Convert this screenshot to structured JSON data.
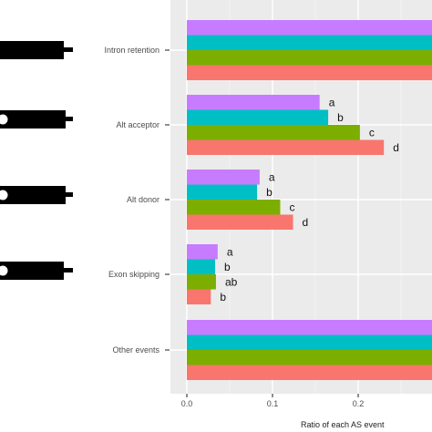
{
  "chart_data": {
    "type": "bar",
    "orientation": "horizontal",
    "categories": [
      "Intron retention",
      "Alt acceptor",
      "Alt donor",
      "Exon skipping",
      "Other events"
    ],
    "xlabel": "Ratio of each AS event",
    "xlim": [
      0,
      0.29
    ],
    "x_ticks": [
      "0.0",
      "0.1",
      "0.2"
    ],
    "x_tick_values": [
      0.0,
      0.1,
      0.2
    ],
    "grid": true,
    "panel_background": "#ebebeb",
    "series": [
      {
        "color": "#c77cff",
        "values": [
          0.29,
          0.155,
          0.085,
          0.036,
          0.29
        ]
      },
      {
        "color": "#00bfc4",
        "values": [
          0.29,
          0.165,
          0.082,
          0.033,
          0.29
        ]
      },
      {
        "color": "#7cae00",
        "values": [
          0.29,
          0.202,
          0.109,
          0.034,
          0.29
        ]
      },
      {
        "color": "#f8766d",
        "values": [
          0.29,
          0.23,
          0.124,
          0.028,
          0.29
        ]
      }
    ],
    "significance_labels": [
      [],
      [
        "a",
        "b",
        "c",
        "d"
      ],
      [
        "a",
        "b",
        "c",
        "d"
      ],
      [
        "a",
        "b",
        "ab",
        "b"
      ],
      []
    ]
  }
}
